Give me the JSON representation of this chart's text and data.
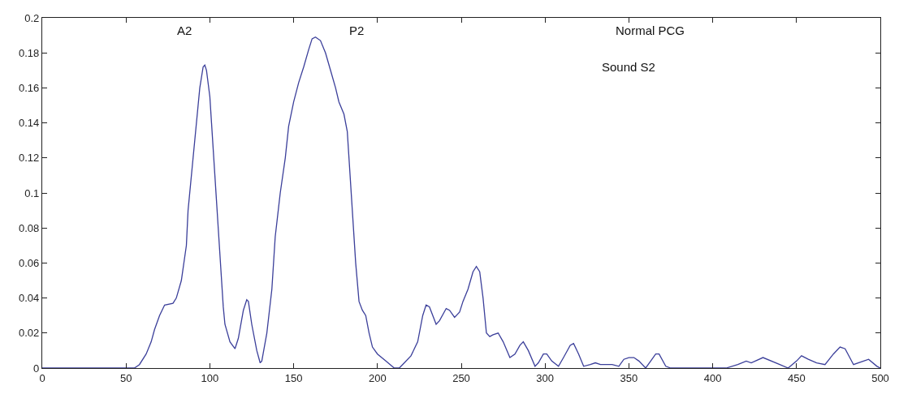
{
  "chart_data": {
    "type": "line",
    "xlim": [
      0,
      500
    ],
    "ylim": [
      0,
      0.2
    ],
    "xticks": [
      0,
      50,
      100,
      150,
      200,
      250,
      300,
      350,
      400,
      450,
      500
    ],
    "yticks": [
      0,
      0.02,
      0.04,
      0.06,
      0.08,
      0.1,
      0.12,
      0.14,
      0.16,
      0.18,
      0.2
    ],
    "marker": "none",
    "line_style": "solid",
    "annotations": [
      "A2",
      "P2",
      "Normal PCG",
      "Sound S2"
    ],
    "series": [
      {
        "color": "#3b3f9a",
        "x": [
          0,
          55,
          58,
          62,
          65,
          67,
          70,
          73,
          78,
          80,
          83,
          86,
          87,
          90,
          93,
          94,
          96,
          97,
          98,
          100,
          101,
          103,
          105,
          107,
          108,
          109,
          112,
          115,
          117,
          120,
          122,
          123,
          125,
          128,
          130,
          131,
          134,
          137,
          139,
          142,
          145,
          147,
          150,
          153,
          156,
          159,
          161,
          163,
          166,
          169,
          172,
          175,
          177,
          180,
          182,
          183,
          185,
          187,
          189,
          191,
          193,
          195,
          197,
          200,
          205,
          210,
          213,
          215,
          220,
          224,
          227,
          229,
          231,
          235,
          237,
          241,
          243,
          246,
          249,
          251,
          254,
          257,
          259,
          261,
          263,
          265,
          267,
          269,
          272,
          275,
          279,
          282,
          285,
          287,
          290,
          294,
          296,
          299,
          301,
          304,
          308,
          311,
          315,
          317,
          320,
          323,
          327,
          330,
          333,
          340,
          344,
          347,
          350,
          353,
          356,
          360,
          363,
          366,
          368,
          372,
          375,
          408,
          415,
          420,
          423,
          430,
          440,
          445,
          450,
          453,
          457,
          462,
          467,
          472,
          476,
          479,
          484,
          490,
          493,
          498,
          500
        ],
        "values": [
          0,
          0,
          0.002,
          0.008,
          0.015,
          0.022,
          0.03,
          0.036,
          0.037,
          0.04,
          0.05,
          0.07,
          0.09,
          0.12,
          0.15,
          0.16,
          0.172,
          0.173,
          0.17,
          0.155,
          0.14,
          0.11,
          0.08,
          0.05,
          0.035,
          0.025,
          0.015,
          0.011,
          0.017,
          0.033,
          0.039,
          0.038,
          0.025,
          0.01,
          0.003,
          0.004,
          0.02,
          0.045,
          0.075,
          0.1,
          0.12,
          0.138,
          0.152,
          0.163,
          0.172,
          0.182,
          0.188,
          0.189,
          0.187,
          0.18,
          0.17,
          0.16,
          0.152,
          0.145,
          0.135,
          0.12,
          0.09,
          0.06,
          0.038,
          0.033,
          0.03,
          0.02,
          0.012,
          0.008,
          0.004,
          0,
          0,
          0.002,
          0.007,
          0.015,
          0.03,
          0.036,
          0.035,
          0.025,
          0.027,
          0.034,
          0.033,
          0.029,
          0.032,
          0.038,
          0.045,
          0.055,
          0.058,
          0.055,
          0.04,
          0.02,
          0.018,
          0.019,
          0.02,
          0.015,
          0.006,
          0.008,
          0.013,
          0.015,
          0.01,
          0.001,
          0.003,
          0.008,
          0.008,
          0.004,
          0.001,
          0.006,
          0.013,
          0.014,
          0.008,
          0.001,
          0.002,
          0.003,
          0.002,
          0.002,
          0.001,
          0.005,
          0.006,
          0.006,
          0.004,
          0,
          0.004,
          0.008,
          0.008,
          0.001,
          0,
          0,
          0.002,
          0.004,
          0.003,
          0.006,
          0.002,
          0,
          0.004,
          0.007,
          0.005,
          0.003,
          0.002,
          0.008,
          0.012,
          0.011,
          0.002,
          0.004,
          0.005,
          0.001,
          0
        ]
      }
    ]
  }
}
